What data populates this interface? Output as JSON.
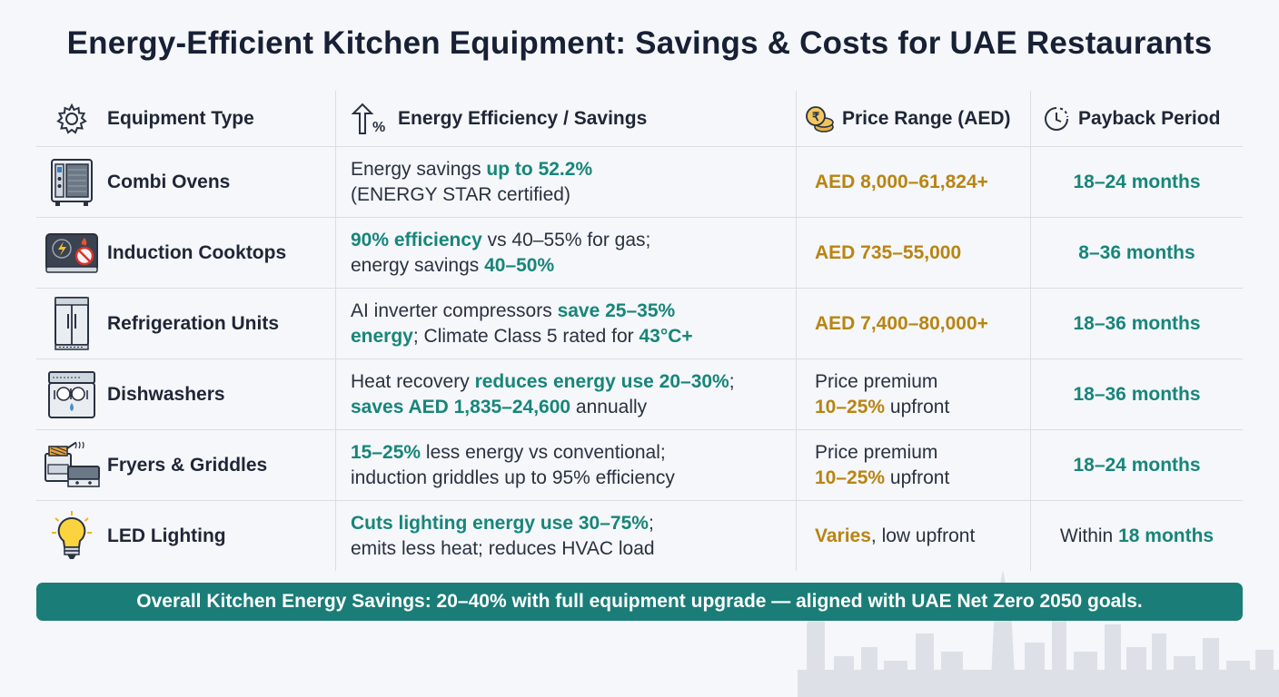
{
  "title": "Energy-Efficient Kitchen Equipment: Savings & Costs for UAE Restaurants",
  "headers": {
    "equipment": "Equipment Type",
    "efficiency": "Energy Efficiency / Savings",
    "price": "Price Range (AED)",
    "payback": "Payback Period"
  },
  "header_icons": [
    "gear-icon",
    "efficiency-arrow-icon",
    "coins-icon",
    "clock-icon"
  ],
  "rows": [
    {
      "icon": "combi-oven-icon",
      "name": "Combi Ovens",
      "eff": {
        "l1a": "Energy savings ",
        "l1b": "up to 52.2%",
        "l1c": "",
        "l2a": "(ENERGY STAR certified)",
        "l2b": "",
        "l2c": ""
      },
      "price": {
        "a": "AED 8,000–61,824+",
        "b": ""
      },
      "payback": {
        "a": "",
        "b": "18–24 months"
      }
    },
    {
      "icon": "induction-cooktop-icon",
      "name": "Induction Cooktops",
      "eff": {
        "l1a": "",
        "l1b": "90% efficiency",
        "l1c": " vs 40–55% for gas;",
        "l2a": "energy savings ",
        "l2b": "40–50%",
        "l2c": ""
      },
      "price": {
        "a": "AED 735–55,000",
        "b": ""
      },
      "payback": {
        "a": "",
        "b": "8–36 months"
      }
    },
    {
      "icon": "refrigerator-icon",
      "name": "Refrigeration Units",
      "eff": {
        "l1a": "AI inverter compressors ",
        "l1b": "save 25–35%",
        "l1c": "",
        "l2a": "",
        "l2b": "energy",
        "l2c": "; Climate Class 5 rated for ",
        "l2d": "43°C+"
      },
      "price": {
        "a": "AED 7,400–80,000+",
        "b": ""
      },
      "payback": {
        "a": "",
        "b": "18–36 months"
      }
    },
    {
      "icon": "dishwasher-icon",
      "name": "Dishwashers",
      "eff": {
        "l1a": "Heat recovery ",
        "l1b": "reduces energy use 20–30%",
        "l1c": ";",
        "l2a": "",
        "l2b": "saves AED 1,835–24,600",
        "l2c": " annually"
      },
      "price": {
        "a": "",
        "b": "",
        "p1": "Price premium",
        "p2b": "10–25%",
        "p2c": " upfront"
      },
      "payback": {
        "a": "",
        "b": "18–36 months"
      }
    },
    {
      "icon": "fryer-griddle-icon",
      "name": "Fryers & Griddles",
      "eff": {
        "l1a": "",
        "l1b": "15–25%",
        "l1c": " less energy vs conventional;",
        "l2a": "induction griddles up to 95% efficiency",
        "l2b": "",
        "l2c": ""
      },
      "price": {
        "a": "",
        "b": "",
        "p1": "Price premium",
        "p2b": "10–25%",
        "p2c": " upfront"
      },
      "payback": {
        "a": "",
        "b": "18–24 months"
      }
    },
    {
      "icon": "light-bulb-icon",
      "name": "LED Lighting",
      "eff": {
        "l1a": "",
        "l1b": "Cuts lighting energy use 30–75%",
        "l1c": ";",
        "l2a": "emits less heat; reduces HVAC load",
        "l2b": "",
        "l2c": ""
      },
      "price": {
        "a": "Varies",
        "b": ", low upfront"
      },
      "payback": {
        "a": "Within ",
        "b": "18 months"
      }
    }
  ],
  "banner": "Overall Kitchen Energy Savings: 20–40% with full equipment upgrade — aligned with UAE Net Zero 2050 goals.",
  "colors": {
    "accent_teal": "#17857a",
    "price_gold": "#b98412",
    "banner_bg": "#1a7d78",
    "title": "#172035"
  }
}
